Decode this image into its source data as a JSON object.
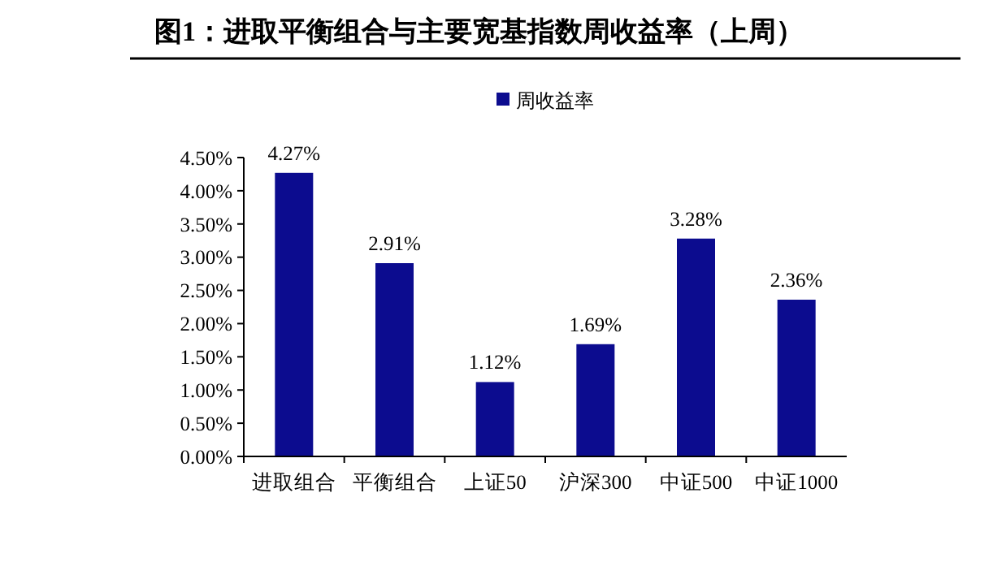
{
  "chart_data": {
    "type": "bar",
    "title": "图1：进取平衡组合与主要宽基指数周收益率（上周）",
    "categories": [
      "进取组合",
      "平衡组合",
      "上证50",
      "沪深300",
      "中证500",
      "中证1000"
    ],
    "series": [
      {
        "name": "周收益率",
        "color": "#0c0c8f",
        "values": [
          4.27,
          2.91,
          1.12,
          1.69,
          3.28,
          2.36
        ],
        "value_labels": [
          "4.27%",
          "2.91%",
          "1.12%",
          "1.69%",
          "3.28%",
          "2.36%"
        ]
      }
    ],
    "ylim": [
      0,
      4.5
    ],
    "yticks": [
      {
        "value": 0,
        "label": "0.00%"
      },
      {
        "value": 0.5,
        "label": "0.50%"
      },
      {
        "value": 1,
        "label": "1.00%"
      },
      {
        "value": 1.5,
        "label": "1.50%"
      },
      {
        "value": 2,
        "label": "2.00%"
      },
      {
        "value": 2.5,
        "label": "2.50%"
      },
      {
        "value": 3,
        "label": "3.00%"
      },
      {
        "value": 3.5,
        "label": "3.50%"
      },
      {
        "value": 4,
        "label": "4.00%"
      },
      {
        "value": 4.5,
        "label": "4.50%"
      }
    ],
    "legend": "top",
    "grid": false
  }
}
